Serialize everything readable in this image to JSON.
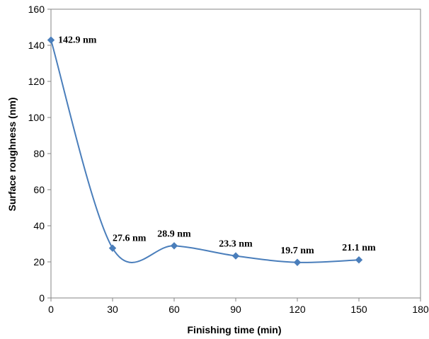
{
  "chart_data": {
    "type": "line",
    "title": "",
    "xlabel": "Finishing time (min)",
    "ylabel": "Surface roughness (nm)",
    "xlim": [
      0,
      180
    ],
    "ylim": [
      0,
      160
    ],
    "xticks": [
      0,
      30,
      60,
      90,
      120,
      150,
      180
    ],
    "yticks": [
      0,
      20,
      40,
      60,
      80,
      100,
      120,
      140,
      160
    ],
    "x": [
      0,
      30,
      60,
      90,
      120,
      150
    ],
    "series": [
      {
        "values": [
          142.9,
          27.6,
          28.9,
          23.3,
          19.7,
          21.1
        ],
        "labels": [
          "142.9 nm",
          "27.6 nm",
          "28.9 nm",
          "23.3 nm",
          "19.7 nm",
          "21.1 nm"
        ],
        "color": "#4a7ebb",
        "marker": "diamond",
        "smooth": true
      }
    ],
    "grid": false,
    "legend": "none"
  }
}
